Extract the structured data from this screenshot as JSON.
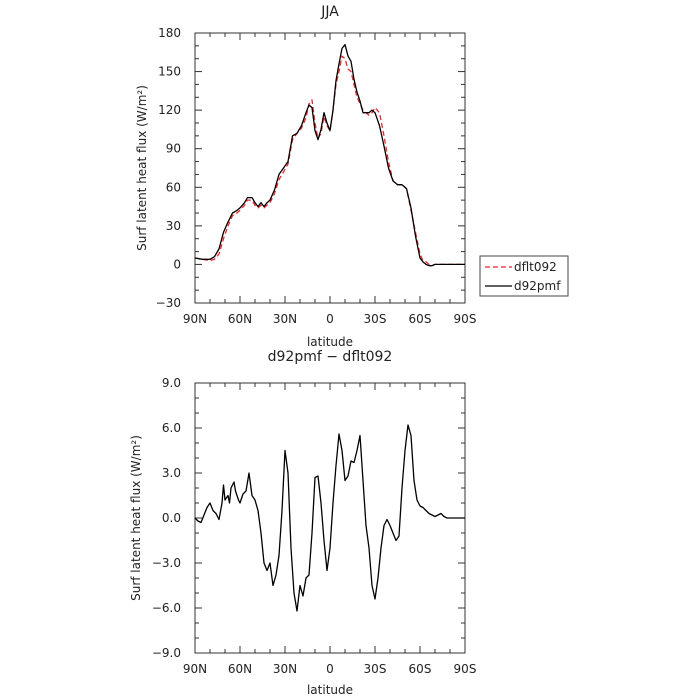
{
  "chart_data": [
    {
      "type": "line",
      "title": "JJA",
      "xlabel": "latitude",
      "ylabel": "Surf latent heat flux (W/m²)",
      "xlim": [
        90,
        -90
      ],
      "ylim": [
        -30,
        180
      ],
      "xticks": [
        90,
        60,
        30,
        0,
        -30,
        -60,
        -90
      ],
      "xticklabels": [
        "90N",
        "60N",
        "30N",
        "0",
        "30S",
        "60S",
        "90S"
      ],
      "yticks": [
        -30,
        0,
        30,
        60,
        90,
        120,
        150,
        180
      ],
      "yticklabels": [
        "−30",
        "0",
        "30",
        "60",
        "90",
        "120",
        "150",
        "180"
      ],
      "legend": {
        "placement": "right-outside"
      },
      "series": [
        {
          "name": "dflt092",
          "color": "#e8282c",
          "dash": "dashed",
          "x": [
            90,
            85,
            80,
            77,
            74,
            71,
            68,
            65,
            62,
            60,
            57,
            55,
            52,
            50,
            48,
            46,
            44,
            42,
            40,
            37,
            34,
            31,
            28,
            25,
            22,
            19,
            16,
            14,
            12,
            10,
            8,
            6,
            4,
            2,
            0,
            -2,
            -4,
            -6,
            -8,
            -10,
            -12,
            -14,
            -16,
            -18,
            -20,
            -22,
            -24,
            -26,
            -28,
            -30,
            -33,
            -36,
            -39,
            -42,
            -45,
            -48,
            -51,
            -54,
            -57,
            -60,
            -62,
            -64,
            -66,
            -68,
            -70,
            -72,
            -75,
            -78,
            -81,
            -84,
            -87,
            -90
          ],
          "y": [
            5,
            4,
            3,
            4,
            8,
            20,
            30,
            38,
            40,
            42,
            46,
            50,
            50,
            46,
            44,
            46,
            44,
            46,
            48,
            55,
            66,
            72,
            78,
            97,
            102,
            106,
            114,
            125,
            128,
            110,
            98,
            102,
            115,
            108,
            104,
            120,
            140,
            150,
            162,
            160,
            152,
            150,
            140,
            130,
            125,
            120,
            118,
            116,
            118,
            122,
            118,
            100,
            80,
            65,
            62,
            62,
            59,
            42,
            25,
            8,
            3,
            2,
            0,
            -1,
            0,
            0,
            0,
            0,
            0,
            0,
            0,
            0
          ]
        },
        {
          "name": "d92pmf",
          "color": "#000000",
          "dash": "solid",
          "x": [
            90,
            85,
            80,
            77,
            74,
            71,
            68,
            65,
            62,
            60,
            57,
            55,
            52,
            50,
            48,
            46,
            44,
            42,
            40,
            37,
            34,
            31,
            28,
            25,
            22,
            19,
            16,
            14,
            12,
            10,
            8,
            6,
            4,
            2,
            0,
            -2,
            -4,
            -6,
            -8,
            -10,
            -12,
            -14,
            -16,
            -18,
            -20,
            -22,
            -24,
            -26,
            -28,
            -30,
            -33,
            -36,
            -39,
            -42,
            -45,
            -48,
            -51,
            -54,
            -57,
            -60,
            -62,
            -64,
            -66,
            -68,
            -70,
            -72,
            -75,
            -78,
            -81,
            -84,
            -87,
            -90
          ],
          "y": [
            5,
            4,
            4,
            6,
            12,
            25,
            33,
            40,
            42,
            44,
            48,
            52,
            52,
            48,
            45,
            48,
            45,
            48,
            50,
            58,
            70,
            75,
            80,
            100,
            102,
            108,
            118,
            124,
            122,
            104,
            97,
            105,
            118,
            110,
            104,
            120,
            143,
            156,
            168,
            171,
            162,
            158,
            144,
            134,
            127,
            118,
            118,
            118,
            120,
            118,
            108,
            92,
            75,
            65,
            62,
            62,
            59,
            44,
            22,
            5,
            2,
            0,
            -1,
            -1,
            0,
            0,
            0,
            0,
            0,
            0,
            0,
            0
          ]
        }
      ]
    },
    {
      "type": "line",
      "title": "d92pmf − dflt092",
      "xlabel": "latitude",
      "ylabel": "Surf latent heat flux (W/m²)",
      "xlim": [
        90,
        -90
      ],
      "ylim": [
        -9,
        9
      ],
      "xticks": [
        90,
        60,
        30,
        0,
        -30,
        -60,
        -90
      ],
      "xticklabels": [
        "90N",
        "60N",
        "30N",
        "0",
        "30S",
        "60S",
        "90S"
      ],
      "yticks": [
        -9,
        -6,
        -3,
        0,
        3,
        6,
        9
      ],
      "yticklabels": [
        "−9.0",
        "−6.0",
        "−3.0",
        "0.0",
        "3.0",
        "6.0",
        "9.0"
      ],
      "series": [
        {
          "color": "#000000",
          "x": [
            90,
            88,
            86,
            84,
            82,
            80,
            78,
            76,
            74,
            72,
            71,
            70,
            68,
            67,
            66,
            64,
            63,
            62,
            61,
            60,
            58,
            56,
            54,
            52,
            50,
            48,
            46,
            44,
            42,
            40,
            38,
            36,
            34,
            32,
            30,
            28,
            26,
            24,
            22,
            20,
            18,
            16,
            14,
            12,
            10,
            8,
            6,
            4,
            2,
            0,
            -2,
            -4,
            -6,
            -8,
            -10,
            -12,
            -14,
            -16,
            -18,
            -20,
            -22,
            -24,
            -26,
            -28,
            -30,
            -32,
            -34,
            -36,
            -38,
            -40,
            -42,
            -44,
            -46,
            -48,
            -50,
            -52,
            -54,
            -56,
            -58,
            -60,
            -62,
            -64,
            -66,
            -68,
            -70,
            -72,
            -74,
            -76,
            -78,
            -80,
            -82,
            -84,
            -86,
            -88,
            -90
          ],
          "y": [
            0,
            -0.2,
            -0.3,
            0.2,
            0.7,
            1.0,
            0.5,
            0.3,
            -0.1,
            1.0,
            2.2,
            1.2,
            1.5,
            1.0,
            2.0,
            2.4,
            1.8,
            1.5,
            1.2,
            1.0,
            1.6,
            1.8,
            3.0,
            1.5,
            1.2,
            0.5,
            -1.0,
            -3.0,
            -3.5,
            -3.0,
            -4.5,
            -3.8,
            -2.5,
            0.5,
            4.5,
            3.0,
            -2.0,
            -5.0,
            -6.2,
            -4.5,
            -5.2,
            -4.0,
            -3.8,
            -1.0,
            2.7,
            2.8,
            1.0,
            -1.5,
            -3.5,
            -2.0,
            1.0,
            3.5,
            5.6,
            4.5,
            2.5,
            2.8,
            3.8,
            3.7,
            4.5,
            5.5,
            2.5,
            -0.5,
            -2.0,
            -4.5,
            -5.4,
            -4.0,
            -2.0,
            -0.5,
            -0.1,
            -0.5,
            -1.0,
            -1.5,
            -1.2,
            2.0,
            4.5,
            6.2,
            5.5,
            2.5,
            1.2,
            0.8,
            0.7,
            0.5,
            0.3,
            0.2,
            0.1,
            0.2,
            0.3,
            0.1,
            0,
            0,
            0,
            0,
            0,
            0,
            0
          ]
        }
      ]
    }
  ]
}
